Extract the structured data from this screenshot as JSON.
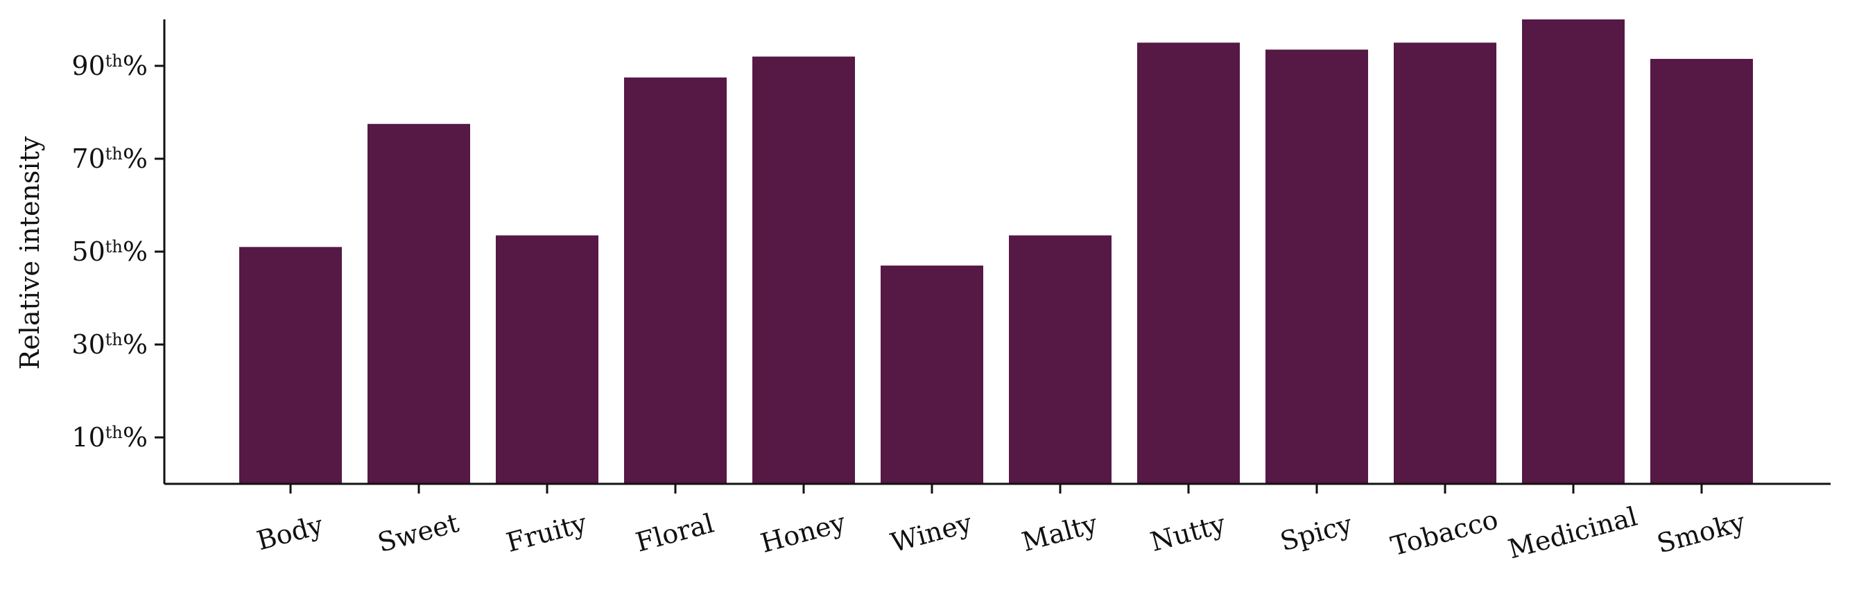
{
  "chart_data": {
    "type": "bar",
    "title": "",
    "xlabel": "",
    "ylabel": "Relative intensity",
    "categories": [
      "Body",
      "Sweet",
      "Fruity",
      "Floral",
      "Honey",
      "Winey",
      "Malty",
      "Nutty",
      "Spicy",
      "Tobacco",
      "Medicinal",
      "Smoky"
    ],
    "values": [
      51,
      77.5,
      53.5,
      87.5,
      92,
      47,
      53.5,
      95,
      93.5,
      95,
      100,
      91.5
    ],
    "ylim": [
      0,
      100
    ],
    "yticks": [
      {
        "value": 10,
        "num": "10",
        "sup": "th",
        "suffix": "%"
      },
      {
        "value": 30,
        "num": "30",
        "sup": "th",
        "suffix": "%"
      },
      {
        "value": 50,
        "num": "50",
        "sup": "th",
        "suffix": "%"
      },
      {
        "value": 70,
        "num": "70",
        "sup": "th",
        "suffix": "%"
      },
      {
        "value": 90,
        "num": "90",
        "sup": "th",
        "suffix": "%"
      }
    ],
    "bar_color": "#561845",
    "grid": false,
    "legend": "none"
  }
}
